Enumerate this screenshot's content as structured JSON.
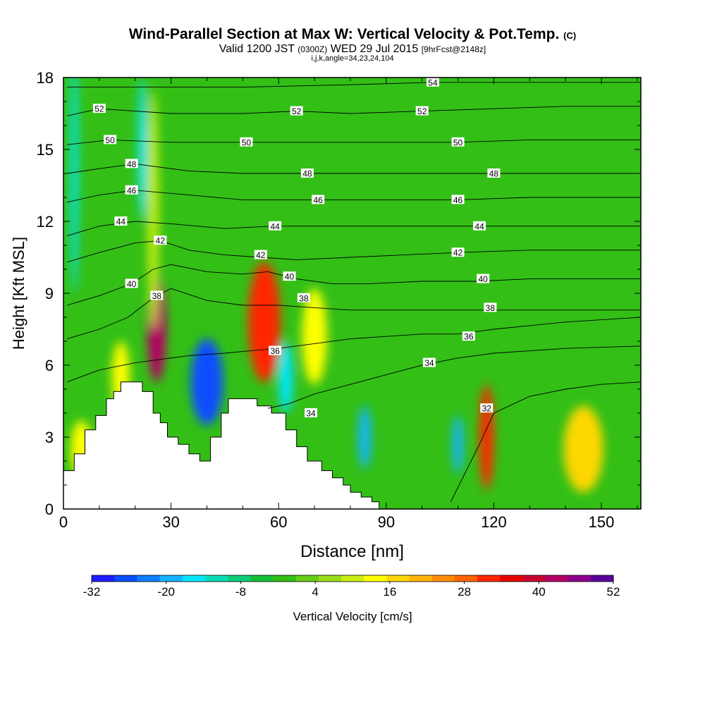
{
  "header": {
    "title": "Wind-Parallel Section at Max W: Vertical Velocity & Pot.Temp.",
    "title_mark": "(C)",
    "subtitle_a": "Valid 1200 JST",
    "subtitle_b": "(0300Z)",
    "subtitle_c": "WED 29 Jul 2015",
    "subtitle_d": "[9hrFcst@2148z]",
    "meta": "i,j,k,angle=34,23,24,104"
  },
  "chart_data": {
    "type": "heatmap",
    "xlabel": "Distance [nm]",
    "ylabel": "Height [Kft MSL]",
    "xlim": [
      0,
      161
    ],
    "ylim": [
      0,
      18
    ],
    "x_ticks": [
      "0",
      "30",
      "60",
      "90",
      "120",
      "150"
    ],
    "y_ticks": [
      "0",
      "3",
      "6",
      "9",
      "12",
      "15",
      "18"
    ],
    "colorbar": {
      "label": "Vertical Velocity [cm/s]",
      "tick_labels": [
        "-32",
        "-20",
        "-8",
        "4",
        "16",
        "28",
        "40",
        "52"
      ],
      "range": [
        -32,
        52
      ],
      "colors": [
        "#1c1cff",
        "#0a4dff",
        "#0f7fff",
        "#15b4ff",
        "#00e6ff",
        "#05dcb4",
        "#0acd78",
        "#13bf36",
        "#33bf16",
        "#66cc16",
        "#99dd16",
        "#ccee12",
        "#ffff00",
        "#ffd700",
        "#ffb400",
        "#ff8c00",
        "#ff6400",
        "#ff2800",
        "#e60000",
        "#c80032",
        "#b40064",
        "#8c008c",
        "#5a009b"
      ]
    },
    "background_value": 0,
    "terrain": [
      [
        0,
        1.6
      ],
      [
        3,
        1.6
      ],
      [
        3,
        2.3
      ],
      [
        6,
        2.3
      ],
      [
        6,
        3.3
      ],
      [
        9,
        3.3
      ],
      [
        9,
        3.9
      ],
      [
        12,
        3.9
      ],
      [
        12,
        4.6
      ],
      [
        14,
        4.6
      ],
      [
        14,
        4.9
      ],
      [
        16,
        4.9
      ],
      [
        16,
        5.3
      ],
      [
        22,
        5.3
      ],
      [
        22,
        4.9
      ],
      [
        25,
        4.9
      ],
      [
        25,
        4.0
      ],
      [
        27,
        4.0
      ],
      [
        27,
        3.6
      ],
      [
        29,
        3.6
      ],
      [
        29,
        3.0
      ],
      [
        32,
        3.0
      ],
      [
        32,
        2.7
      ],
      [
        35,
        2.7
      ],
      [
        35,
        2.3
      ],
      [
        38,
        2.3
      ],
      [
        38,
        2.0
      ],
      [
        41,
        2.0
      ],
      [
        41,
        3.0
      ],
      [
        44,
        3.0
      ],
      [
        44,
        4.0
      ],
      [
        46,
        4.0
      ],
      [
        46,
        4.6
      ],
      [
        54,
        4.6
      ],
      [
        54,
        4.3
      ],
      [
        58,
        4.3
      ],
      [
        58,
        4.0
      ],
      [
        62,
        4.0
      ],
      [
        62,
        3.3
      ],
      [
        65,
        3.3
      ],
      [
        65,
        2.6
      ],
      [
        68,
        2.6
      ],
      [
        68,
        2.0
      ],
      [
        72,
        2.0
      ],
      [
        72,
        1.6
      ],
      [
        75,
        1.6
      ],
      [
        75,
        1.3
      ],
      [
        78,
        1.3
      ],
      [
        78,
        1.0
      ],
      [
        80,
        1.0
      ],
      [
        80,
        0.7
      ],
      [
        83,
        0.7
      ],
      [
        83,
        0.5
      ],
      [
        86,
        0.5
      ],
      [
        86,
        0.3
      ],
      [
        88,
        0.3
      ],
      [
        88,
        0
      ]
    ],
    "vertical_velocity_cells": [
      {
        "x": 26,
        "y": 7.5,
        "w": 2.6,
        "h": 2.2,
        "value": 44
      },
      {
        "x": 56,
        "y": 7.8,
        "w": 4.5,
        "h": 2.5,
        "value": 32
      },
      {
        "x": 70,
        "y": 7.2,
        "w": 3.5,
        "h": 2.0,
        "value": 14
      },
      {
        "x": 118,
        "y": 3.0,
        "w": 2.0,
        "h": 2.2,
        "value": 32
      },
      {
        "x": 145,
        "y": 2.5,
        "w": 5.5,
        "h": 1.8,
        "value": 18
      },
      {
        "x": 16,
        "y": 5.5,
        "w": 2.5,
        "h": 1.5,
        "value": 14
      },
      {
        "x": 5,
        "y": 2.5,
        "w": 3.0,
        "h": 1.2,
        "value": 14
      },
      {
        "x": 40,
        "y": 5.3,
        "w": 4.5,
        "h": 1.8,
        "value": -28
      },
      {
        "x": 62,
        "y": 5.5,
        "w": 2.0,
        "h": 1.5,
        "value": -16
      },
      {
        "x": 84,
        "y": 3.0,
        "w": 1.8,
        "h": 1.3,
        "value": -20
      },
      {
        "x": 110,
        "y": 2.7,
        "w": 1.5,
        "h": 1.2,
        "value": -20
      },
      {
        "x": 25,
        "y": 12.5,
        "w": 1.5,
        "h": 5.0,
        "value": 10
      },
      {
        "x": 22,
        "y": 15.0,
        "w": 1.2,
        "h": 3.0,
        "value": -14
      },
      {
        "x": 3,
        "y": 14.0,
        "w": 1.0,
        "h": 5.0,
        "value": -14
      }
    ],
    "isentropes": [
      {
        "label": "32",
        "label_pos": [
          118,
          4.2
        ],
        "points": [
          [
            108,
            0.3
          ],
          [
            112,
            1.5
          ],
          [
            116,
            2.7
          ],
          [
            120,
            4.0
          ],
          [
            130,
            4.7
          ],
          [
            140,
            5.0
          ],
          [
            150,
            5.2
          ],
          [
            161,
            5.3
          ]
        ]
      },
      {
        "label": "34",
        "label_pos": [
          69,
          4.0
        ],
        "points": [
          [
            57,
            4.2
          ],
          [
            63,
            4.4
          ],
          [
            70,
            4.8
          ],
          [
            80,
            5.2
          ],
          [
            90,
            5.6
          ],
          [
            100,
            6.0
          ],
          [
            110,
            6.3
          ],
          [
            120,
            6.5
          ],
          [
            140,
            6.7
          ],
          [
            161,
            6.8
          ]
        ]
      },
      {
        "label": "34",
        "label_pos": [
          102,
          6.1
        ],
        "points": []
      },
      {
        "label": "36",
        "label_pos": [
          59,
          6.6
        ],
        "points": [
          [
            1,
            5.3
          ],
          [
            10,
            5.8
          ],
          [
            20,
            6.1
          ],
          [
            35,
            6.4
          ],
          [
            45,
            6.5
          ],
          [
            52,
            6.6
          ],
          [
            60,
            6.7
          ],
          [
            70,
            6.9
          ],
          [
            80,
            7.1
          ],
          [
            90,
            7.2
          ],
          [
            100,
            7.3
          ],
          [
            110,
            7.3
          ],
          [
            120,
            7.5
          ],
          [
            140,
            7.8
          ],
          [
            161,
            8.0
          ]
        ]
      },
      {
        "label": "36",
        "label_pos": [
          113,
          7.2
        ],
        "points": []
      },
      {
        "label": "38",
        "label_pos": [
          26,
          8.9
        ],
        "points": [
          [
            1,
            7.1
          ],
          [
            10,
            7.5
          ],
          [
            18,
            8.0
          ],
          [
            25,
            8.8
          ],
          [
            30,
            9.2
          ],
          [
            40,
            8.7
          ],
          [
            50,
            8.5
          ],
          [
            60,
            8.5
          ],
          [
            70,
            8.4
          ],
          [
            80,
            8.3
          ],
          [
            90,
            8.3
          ],
          [
            100,
            8.3
          ],
          [
            110,
            8.3
          ],
          [
            120,
            8.3
          ],
          [
            140,
            8.3
          ],
          [
            161,
            8.3
          ]
        ]
      },
      {
        "label": "38",
        "label_pos": [
          67,
          8.8
        ],
        "points": []
      },
      {
        "label": "38",
        "label_pos": [
          119,
          8.4
        ],
        "points": []
      },
      {
        "label": "40",
        "label_pos": [
          19,
          9.4
        ],
        "points": [
          [
            1,
            8.5
          ],
          [
            10,
            8.9
          ],
          [
            19,
            9.4
          ],
          [
            25,
            10.0
          ],
          [
            30,
            10.2
          ],
          [
            40,
            9.9
          ],
          [
            50,
            9.8
          ],
          [
            57,
            9.9
          ],
          [
            65,
            9.6
          ],
          [
            75,
            9.4
          ],
          [
            85,
            9.4
          ],
          [
            100,
            9.5
          ],
          [
            115,
            9.5
          ],
          [
            130,
            9.6
          ],
          [
            161,
            9.6
          ]
        ]
      },
      {
        "label": "40",
        "label_pos": [
          63,
          9.7
        ],
        "points": []
      },
      {
        "label": "40",
        "label_pos": [
          117,
          9.6
        ],
        "points": []
      },
      {
        "label": "42",
        "label_pos": [
          27,
          11.2
        ],
        "points": [
          [
            1,
            10.3
          ],
          [
            10,
            10.7
          ],
          [
            20,
            11.1
          ],
          [
            27,
            11.2
          ],
          [
            35,
            10.8
          ],
          [
            45,
            10.6
          ],
          [
            55,
            10.5
          ],
          [
            65,
            10.4
          ],
          [
            80,
            10.5
          ],
          [
            95,
            10.6
          ],
          [
            110,
            10.7
          ],
          [
            130,
            10.8
          ],
          [
            161,
            10.8
          ]
        ]
      },
      {
        "label": "42",
        "label_pos": [
          55,
          10.6
        ],
        "points": []
      },
      {
        "label": "42",
        "label_pos": [
          110,
          10.7
        ],
        "points": []
      },
      {
        "label": "44",
        "label_pos": [
          16,
          12.0
        ],
        "points": [
          [
            1,
            11.4
          ],
          [
            10,
            11.8
          ],
          [
            20,
            12.0
          ],
          [
            30,
            11.9
          ],
          [
            45,
            11.7
          ],
          [
            58,
            11.8
          ],
          [
            70,
            11.8
          ],
          [
            85,
            11.8
          ],
          [
            100,
            11.8
          ],
          [
            115,
            11.8
          ],
          [
            130,
            11.8
          ],
          [
            161,
            11.8
          ]
        ]
      },
      {
        "label": "44",
        "label_pos": [
          59,
          11.8
        ],
        "points": []
      },
      {
        "label": "44",
        "label_pos": [
          116,
          11.8
        ],
        "points": []
      },
      {
        "label": "46",
        "label_pos": [
          19,
          13.3
        ],
        "points": [
          [
            1,
            12.8
          ],
          [
            10,
            13.1
          ],
          [
            20,
            13.3
          ],
          [
            35,
            13.1
          ],
          [
            50,
            12.9
          ],
          [
            60,
            12.9
          ],
          [
            72,
            12.9
          ],
          [
            90,
            12.9
          ],
          [
            110,
            12.9
          ],
          [
            130,
            13.0
          ],
          [
            161,
            13.0
          ]
        ]
      },
      {
        "label": "46",
        "label_pos": [
          71,
          12.9
        ],
        "points": []
      },
      {
        "label": "46",
        "label_pos": [
          110,
          12.9
        ],
        "points": []
      },
      {
        "label": "48",
        "label_pos": [
          19,
          14.4
        ],
        "points": [
          [
            1,
            14.0
          ],
          [
            10,
            14.2
          ],
          [
            20,
            14.4
          ],
          [
            35,
            14.1
          ],
          [
            50,
            14.0
          ],
          [
            68,
            14.0
          ],
          [
            85,
            14.0
          ],
          [
            100,
            14.0
          ],
          [
            120,
            14.0
          ],
          [
            140,
            14.0
          ],
          [
            161,
            14.0
          ]
        ]
      },
      {
        "label": "48",
        "label_pos": [
          68,
          14.0
        ],
        "points": []
      },
      {
        "label": "48",
        "label_pos": [
          120,
          14.0
        ],
        "points": []
      },
      {
        "label": "50",
        "label_pos": [
          13,
          15.4
        ],
        "points": [
          [
            1,
            15.2
          ],
          [
            13,
            15.4
          ],
          [
            30,
            15.3
          ],
          [
            51,
            15.3
          ],
          [
            70,
            15.3
          ],
          [
            90,
            15.3
          ],
          [
            110,
            15.3
          ],
          [
            130,
            15.4
          ],
          [
            161,
            15.4
          ]
        ]
      },
      {
        "label": "50",
        "label_pos": [
          51,
          15.3
        ],
        "points": []
      },
      {
        "label": "50",
        "label_pos": [
          110,
          15.3
        ],
        "points": []
      },
      {
        "label": "52",
        "label_pos": [
          10,
          16.7
        ],
        "points": [
          [
            1,
            16.4
          ],
          [
            10,
            16.7
          ],
          [
            30,
            16.5
          ],
          [
            50,
            16.5
          ],
          [
            65,
            16.6
          ],
          [
            80,
            16.5
          ],
          [
            100,
            16.6
          ],
          [
            120,
            16.7
          ],
          [
            140,
            16.8
          ],
          [
            161,
            16.8
          ]
        ]
      },
      {
        "label": "52",
        "label_pos": [
          65,
          16.6
        ],
        "points": []
      },
      {
        "label": "52",
        "label_pos": [
          100,
          16.6
        ],
        "points": []
      },
      {
        "label": "54",
        "label_pos": [
          103,
          17.8
        ],
        "points": [
          [
            1,
            17.6
          ],
          [
            20,
            17.6
          ],
          [
            50,
            17.6
          ],
          [
            80,
            17.7
          ],
          [
            103,
            17.8
          ],
          [
            130,
            17.8
          ],
          [
            161,
            17.8
          ]
        ]
      }
    ]
  }
}
